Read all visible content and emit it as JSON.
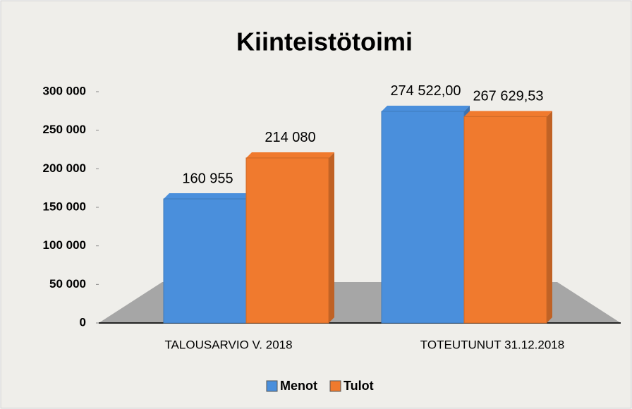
{
  "chart_data": {
    "type": "bar",
    "title": "Kiinteistötoimi",
    "categories": [
      "TALOUSARVIO V. 2018",
      "TOTEUTUNUT 31.12.2018"
    ],
    "series": [
      {
        "name": "Menot",
        "color": "#4a8fdc",
        "values": [
          160955,
          274522
        ],
        "value_labels": [
          "160 955",
          "274 522,00"
        ]
      },
      {
        "name": "Tulot",
        "color": "#f07a2e",
        "values": [
          214080,
          267629.53
        ],
        "value_labels": [
          "214 080",
          "267 629,53"
        ]
      }
    ],
    "ylim": [
      0,
      300000
    ],
    "yticks": [
      0,
      {
        "value": 50000,
        "label": "50 000"
      },
      {
        "value": 100000,
        "label": "100 000"
      },
      {
        "value": 150000,
        "label": "150 000"
      },
      {
        "value": 200000,
        "label": "200 000"
      },
      {
        "value": 250000,
        "label": "250 000"
      },
      {
        "value": 300000,
        "label": "300 000"
      }
    ],
    "legend": "bottom"
  }
}
